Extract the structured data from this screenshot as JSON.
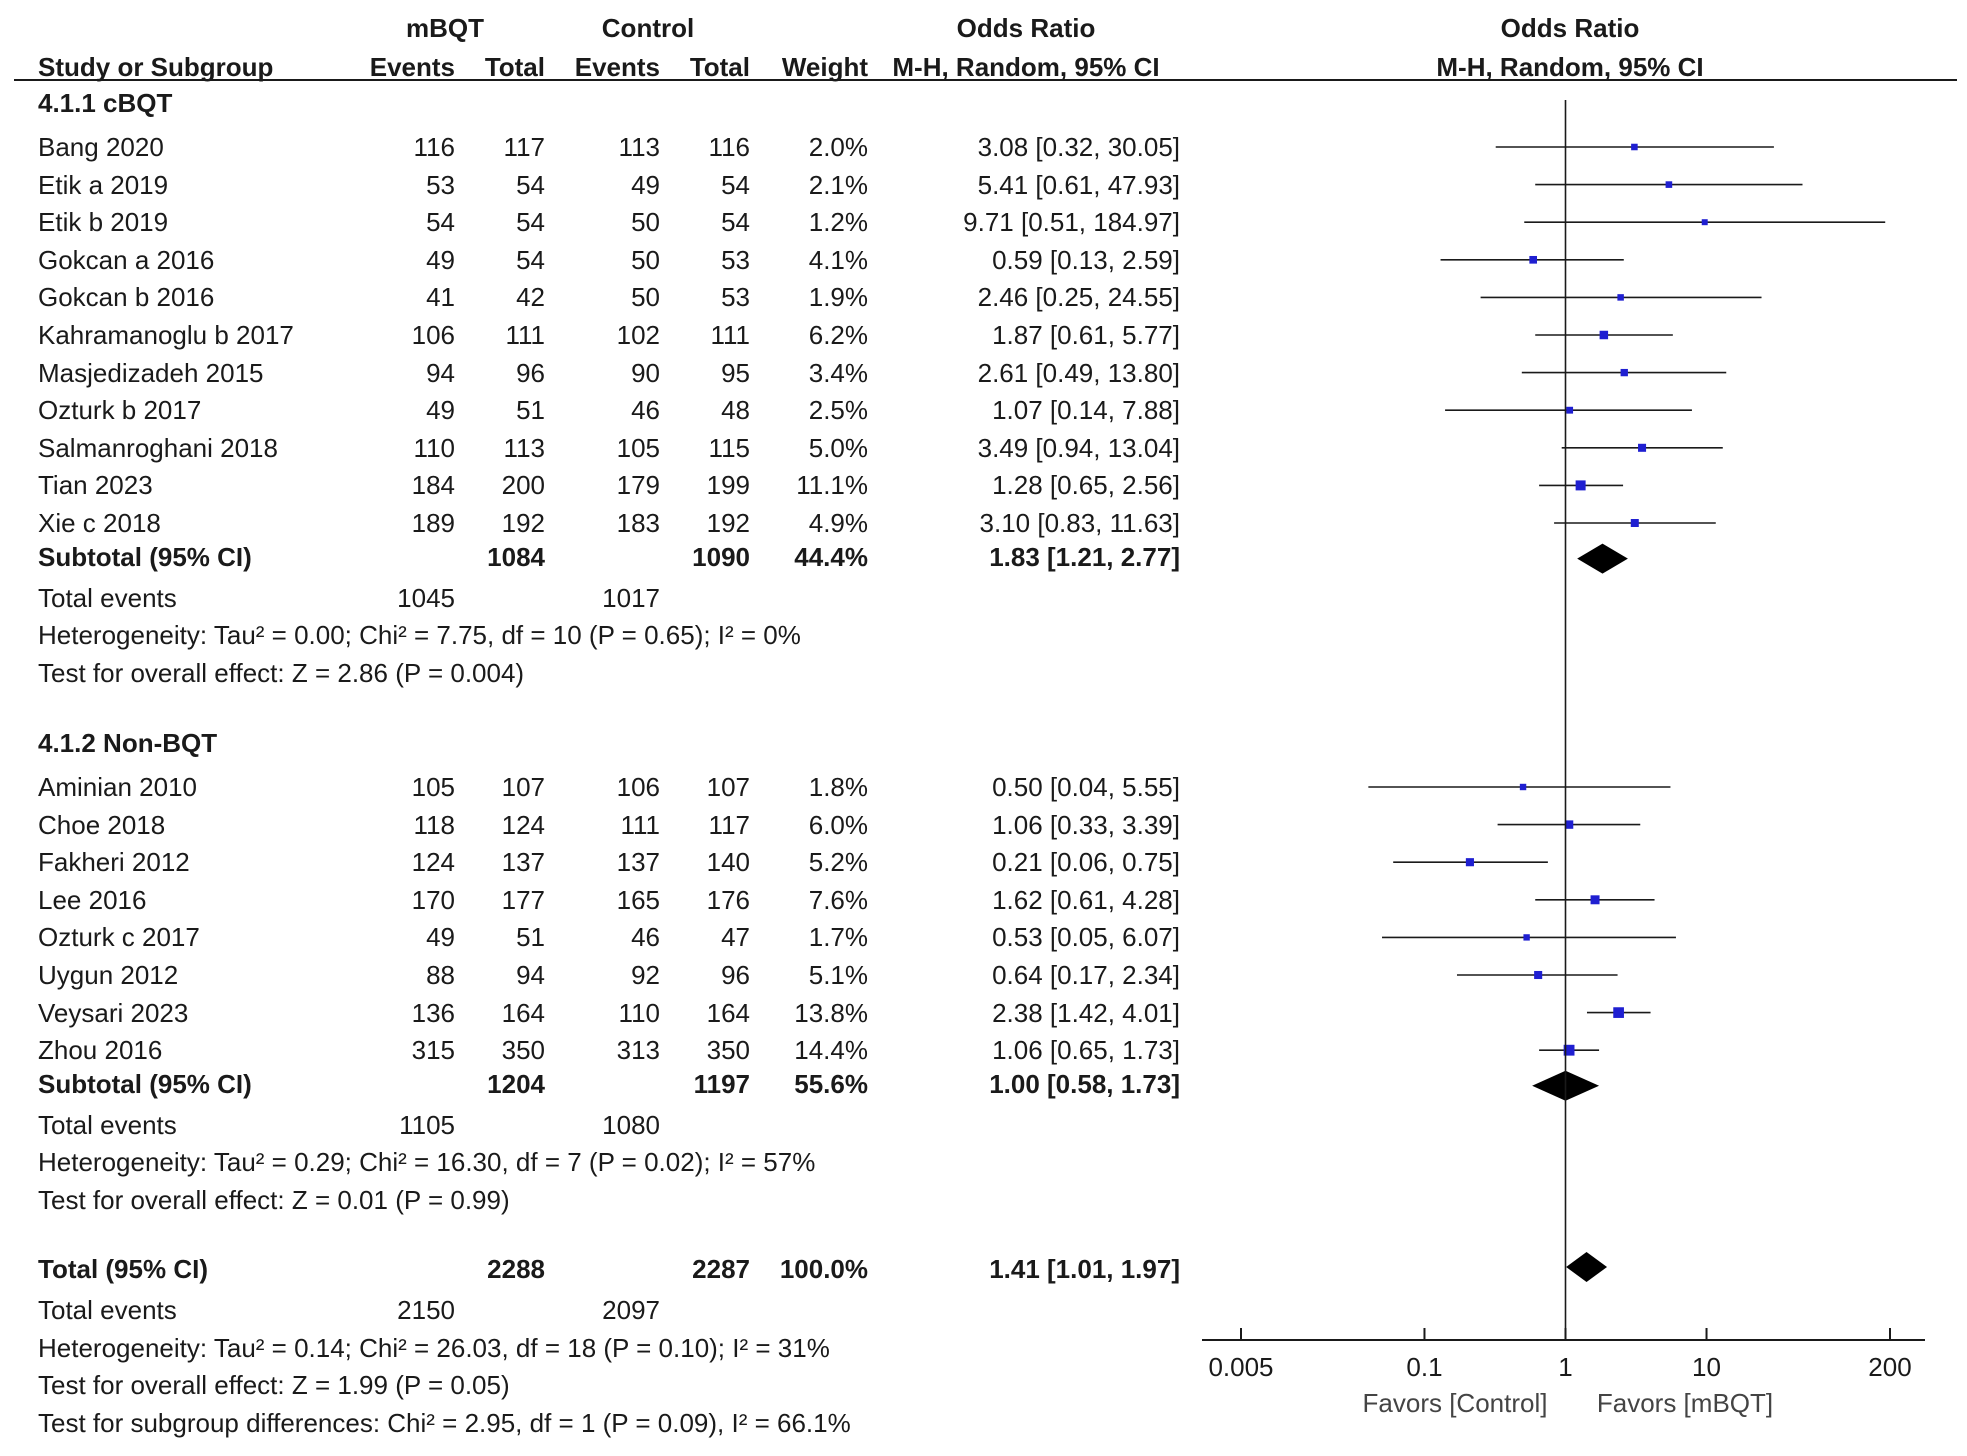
{
  "header": {
    "group1": "mBQT",
    "group2": "Control",
    "or_table": "Odds Ratio",
    "or_plot": "Odds Ratio",
    "col_study": "Study or Subgroup",
    "col_events1": "Events",
    "col_total1": "Total",
    "col_events2": "Events",
    "col_total2": "Total",
    "col_weight": "Weight",
    "col_method": "M-H, Random, 95% CI",
    "col_method_plot": "M-H, Random, 95% CI"
  },
  "subgroups": [
    {
      "title": "4.1.1 cBQT",
      "studies": [
        {
          "name": "Bang 2020",
          "e1": "116",
          "t1": "117",
          "e2": "113",
          "t2": "116",
          "weight": "2.0%",
          "ci": "3.08 [0.32, 30.05]"
        },
        {
          "name": "Etik a 2019",
          "e1": "53",
          "t1": "54",
          "e2": "49",
          "t2": "54",
          "weight": "2.1%",
          "ci": "5.41 [0.61, 47.93]"
        },
        {
          "name": "Etik b 2019",
          "e1": "54",
          "t1": "54",
          "e2": "50",
          "t2": "54",
          "weight": "1.2%",
          "ci": "9.71 [0.51, 184.97]"
        },
        {
          "name": "Gokcan a 2016",
          "e1": "49",
          "t1": "54",
          "e2": "50",
          "t2": "53",
          "weight": "4.1%",
          "ci": "0.59 [0.13, 2.59]"
        },
        {
          "name": "Gokcan b 2016",
          "e1": "41",
          "t1": "42",
          "e2": "50",
          "t2": "53",
          "weight": "1.9%",
          "ci": "2.46 [0.25, 24.55]"
        },
        {
          "name": "Kahramanoglu b 2017",
          "e1": "106",
          "t1": "111",
          "e2": "102",
          "t2": "111",
          "weight": "6.2%",
          "ci": "1.87 [0.61, 5.77]"
        },
        {
          "name": "Masjedizadeh 2015",
          "e1": "94",
          "t1": "96",
          "e2": "90",
          "t2": "95",
          "weight": "3.4%",
          "ci": "2.61 [0.49, 13.80]"
        },
        {
          "name": "Ozturk b 2017",
          "e1": "49",
          "t1": "51",
          "e2": "46",
          "t2": "48",
          "weight": "2.5%",
          "ci": "1.07 [0.14, 7.88]"
        },
        {
          "name": "Salmanroghani 2018",
          "e1": "110",
          "t1": "113",
          "e2": "105",
          "t2": "115",
          "weight": "5.0%",
          "ci": "3.49 [0.94, 13.04]"
        },
        {
          "name": "Tian 2023",
          "e1": "184",
          "t1": "200",
          "e2": "179",
          "t2": "199",
          "weight": "11.1%",
          "ci": "1.28 [0.65, 2.56]"
        },
        {
          "name": "Xie c 2018",
          "e1": "189",
          "t1": "192",
          "e2": "183",
          "t2": "192",
          "weight": "4.9%",
          "ci": "3.10 [0.83, 11.63]"
        }
      ],
      "subtotal": {
        "label": "Subtotal (95% CI)",
        "t1": "1084",
        "t2": "1090",
        "weight": "44.4%",
        "ci": "1.83 [1.21, 2.77]"
      },
      "events": {
        "label": "Total events",
        "e1": "1045",
        "e2": "1017"
      },
      "heterogeneity": "Heterogeneity: Tau² = 0.00; Chi² = 7.75, df = 10 (P = 0.65); I² = 0%",
      "overall": "Test for overall effect: Z = 2.86 (P = 0.004)"
    },
    {
      "title": "4.1.2 Non-BQT",
      "studies": [
        {
          "name": "Aminian 2010",
          "e1": "105",
          "t1": "107",
          "e2": "106",
          "t2": "107",
          "weight": "1.8%",
          "ci": "0.50 [0.04, 5.55]"
        },
        {
          "name": "Choe 2018",
          "e1": "118",
          "t1": "124",
          "e2": "111",
          "t2": "117",
          "weight": "6.0%",
          "ci": "1.06 [0.33, 3.39]"
        },
        {
          "name": "Fakheri 2012",
          "e1": "124",
          "t1": "137",
          "e2": "137",
          "t2": "140",
          "weight": "5.2%",
          "ci": "0.21 [0.06, 0.75]"
        },
        {
          "name": "Lee 2016",
          "e1": "170",
          "t1": "177",
          "e2": "165",
          "t2": "176",
          "weight": "7.6%",
          "ci": "1.62 [0.61, 4.28]"
        },
        {
          "name": "Ozturk c 2017",
          "e1": "49",
          "t1": "51",
          "e2": "46",
          "t2": "47",
          "weight": "1.7%",
          "ci": "0.53 [0.05, 6.07]"
        },
        {
          "name": "Uygun 2012",
          "e1": "88",
          "t1": "94",
          "e2": "92",
          "t2": "96",
          "weight": "5.1%",
          "ci": "0.64 [0.17, 2.34]"
        },
        {
          "name": "Veysari 2023",
          "e1": "136",
          "t1": "164",
          "e2": "110",
          "t2": "164",
          "weight": "13.8%",
          "ci": "2.38 [1.42, 4.01]"
        },
        {
          "name": "Zhou 2016",
          "e1": "315",
          "t1": "350",
          "e2": "313",
          "t2": "350",
          "weight": "14.4%",
          "ci": "1.06 [0.65, 1.73]"
        }
      ],
      "subtotal": {
        "label": "Subtotal (95% CI)",
        "t1": "1204",
        "t2": "1197",
        "weight": "55.6%",
        "ci": "1.00 [0.58, 1.73]"
      },
      "events": {
        "label": "Total events",
        "e1": "1105",
        "e2": "1080"
      },
      "heterogeneity": "Heterogeneity: Tau² = 0.29; Chi² = 16.30, df = 7 (P = 0.02); I² = 57%",
      "overall": "Test for overall effect: Z = 0.01 (P = 0.99)"
    }
  ],
  "total": {
    "label": "Total (95% CI)",
    "t1": "2288",
    "t2": "2287",
    "weight": "100.0%",
    "ci": "1.41 [1.01, 1.97]"
  },
  "total_events": {
    "label": "Total events",
    "e1": "2150",
    "e2": "2097"
  },
  "total_heterogeneity": "Heterogeneity: Tau² = 0.14; Chi² = 26.03, df = 18 (P = 0.10); I² = 31%",
  "total_overall": "Test for overall effect: Z = 1.99 (P = 0.05)",
  "subgroup_diff": "Test for subgroup differences: Chi² = 2.95, df = 1 (P = 0.09), I² = 66.1%",
  "axis": {
    "ticks": [
      "0.005",
      "0.1",
      "1",
      "10",
      "200"
    ],
    "favors_left": "Favors  [Control]",
    "favors_right": "Favors  [mBQT]"
  },
  "colors": {
    "study_marker": "#1f1fd1",
    "line": "#1a1a1a",
    "diamond": "#000000"
  },
  "chart_data": {
    "type": "forest",
    "title": "Odds Ratio M-H, Random, 95% CI",
    "scale": "log",
    "xlim": [
      0.005,
      200
    ],
    "ticks": [
      0.005,
      0.1,
      1,
      10,
      200
    ],
    "reference": 1,
    "studies": [
      {
        "name": "Bang 2020",
        "or": 3.08,
        "lo": 0.32,
        "hi": 30.05,
        "w": 2.0
      },
      {
        "name": "Etik a 2019",
        "or": 5.41,
        "lo": 0.61,
        "hi": 47.93,
        "w": 2.1
      },
      {
        "name": "Etik b 2019",
        "or": 9.71,
        "lo": 0.51,
        "hi": 184.97,
        "w": 1.2
      },
      {
        "name": "Gokcan a 2016",
        "or": 0.59,
        "lo": 0.13,
        "hi": 2.59,
        "w": 4.1
      },
      {
        "name": "Gokcan b 2016",
        "or": 2.46,
        "lo": 0.25,
        "hi": 24.55,
        "w": 1.9
      },
      {
        "name": "Kahramanoglu b 2017",
        "or": 1.87,
        "lo": 0.61,
        "hi": 5.77,
        "w": 6.2
      },
      {
        "name": "Masjedizadeh 2015",
        "or": 2.61,
        "lo": 0.49,
        "hi": 13.8,
        "w": 3.4
      },
      {
        "name": "Ozturk b 2017",
        "or": 1.07,
        "lo": 0.14,
        "hi": 7.88,
        "w": 2.5
      },
      {
        "name": "Salmanroghani 2018",
        "or": 3.49,
        "lo": 0.94,
        "hi": 13.04,
        "w": 5.0
      },
      {
        "name": "Tian 2023",
        "or": 1.28,
        "lo": 0.65,
        "hi": 2.56,
        "w": 11.1
      },
      {
        "name": "Xie c 2018",
        "or": 3.1,
        "lo": 0.83,
        "hi": 11.63,
        "w": 4.9
      },
      {
        "name": "Aminian 2010",
        "or": 0.5,
        "lo": 0.04,
        "hi": 5.55,
        "w": 1.8
      },
      {
        "name": "Choe 2018",
        "or": 1.06,
        "lo": 0.33,
        "hi": 3.39,
        "w": 6.0
      },
      {
        "name": "Fakheri 2012",
        "or": 0.21,
        "lo": 0.06,
        "hi": 0.75,
        "w": 5.2
      },
      {
        "name": "Lee 2016",
        "or": 1.62,
        "lo": 0.61,
        "hi": 4.28,
        "w": 7.6
      },
      {
        "name": "Ozturk c 2017",
        "or": 0.53,
        "lo": 0.05,
        "hi": 6.07,
        "w": 1.7
      },
      {
        "name": "Uygun 2012",
        "or": 0.64,
        "lo": 0.17,
        "hi": 2.34,
        "w": 5.1
      },
      {
        "name": "Veysari 2023",
        "or": 2.38,
        "lo": 1.42,
        "hi": 4.01,
        "w": 13.8
      },
      {
        "name": "Zhou 2016",
        "or": 1.06,
        "lo": 0.65,
        "hi": 1.73,
        "w": 14.4
      }
    ],
    "diamonds": [
      {
        "name": "Subtotal cBQT",
        "or": 1.83,
        "lo": 1.21,
        "hi": 2.77
      },
      {
        "name": "Subtotal Non-BQT",
        "or": 1.0,
        "lo": 0.58,
        "hi": 1.73
      },
      {
        "name": "Total",
        "or": 1.41,
        "lo": 1.01,
        "hi": 1.97
      }
    ]
  }
}
